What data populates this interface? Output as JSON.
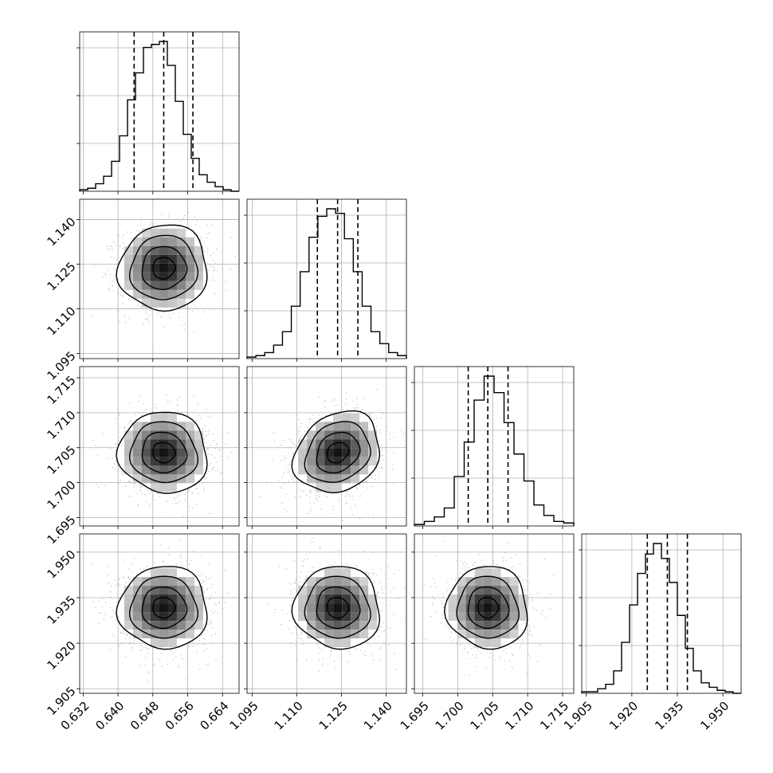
{
  "chart_data": {
    "type": "corner",
    "title": "",
    "style": {
      "grid": true,
      "line_color": "#000000",
      "scatter_color": "#8c8c8c",
      "fill_color": "#ffffff"
    },
    "variables": [
      {
        "index": 0,
        "ticks": [
          "0.632",
          "0.640",
          "0.648",
          "0.656",
          "0.664"
        ],
        "tick_values": [
          0.632,
          0.64,
          0.648,
          0.656,
          0.664
        ],
        "range": [
          0.6312,
          0.6678
        ],
        "quantiles": [
          0.6437,
          0.6505,
          0.6572
        ],
        "histogram": [
          0.01,
          0.02,
          0.05,
          0.1,
          0.2,
          0.37,
          0.61,
          0.79,
          0.96,
          0.98,
          1.0,
          0.84,
          0.6,
          0.38,
          0.22,
          0.11,
          0.06,
          0.03,
          0.01,
          0.0
        ]
      },
      {
        "index": 1,
        "ticks": [
          "1.095",
          "1.110",
          "1.125",
          "1.140"
        ],
        "tick_values": [
          1.095,
          1.11,
          1.125,
          1.14
        ],
        "range": [
          1.0933,
          1.1468
        ],
        "quantiles": [
          1.1169,
          1.1237,
          1.1305
        ],
        "histogram": [
          0.01,
          0.02,
          0.04,
          0.09,
          0.18,
          0.35,
          0.58,
          0.81,
          0.95,
          1.0,
          0.97,
          0.8,
          0.58,
          0.35,
          0.18,
          0.1,
          0.04,
          0.02
        ]
      },
      {
        "index": 2,
        "ticks": [
          "1.695",
          "1.700",
          "1.705",
          "1.710",
          "1.715"
        ],
        "tick_values": [
          1.695,
          1.7,
          1.705,
          1.71,
          1.715
        ],
        "range": [
          1.6938,
          1.7166
        ],
        "quantiles": [
          1.7015,
          1.7043,
          1.7072
        ],
        "histogram": [
          0.01,
          0.03,
          0.06,
          0.12,
          0.33,
          0.56,
          0.84,
          1.0,
          0.89,
          0.69,
          0.48,
          0.3,
          0.14,
          0.07,
          0.03,
          0.02
        ]
      },
      {
        "index": 3,
        "ticks": [
          "1.905",
          "1.920",
          "1.935",
          "1.950"
        ],
        "tick_values": [
          1.905,
          1.92,
          1.935,
          1.95
        ],
        "range": [
          1.9035,
          1.956
        ],
        "quantiles": [
          1.9251,
          1.9317,
          1.9383
        ],
        "histogram": [
          0.01,
          0.01,
          0.03,
          0.06,
          0.15,
          0.34,
          0.59,
          0.8,
          0.93,
          1.0,
          0.9,
          0.74,
          0.52,
          0.3,
          0.15,
          0.07,
          0.04,
          0.02,
          0.01,
          0.0
        ]
      }
    ],
    "pairs": [
      {
        "row": 1,
        "col": 0,
        "mean": [
          0.6505,
          1.1237
        ],
        "sd": [
          0.0051,
          0.0072
        ],
        "rho": 0.04
      },
      {
        "row": 2,
        "col": 0,
        "mean": [
          0.6505,
          1.7043
        ],
        "sd": [
          0.0051,
          0.0029
        ],
        "rho": -0.05
      },
      {
        "row": 2,
        "col": 1,
        "mean": [
          1.1237,
          1.7043
        ],
        "sd": [
          0.0072,
          0.0029
        ],
        "rho": 0.2
      },
      {
        "row": 3,
        "col": 0,
        "mean": [
          0.6505,
          1.9317
        ],
        "sd": [
          0.0051,
          0.0068
        ],
        "rho": 0.0
      },
      {
        "row": 3,
        "col": 1,
        "mean": [
          1.1237,
          1.9317
        ],
        "sd": [
          0.0072,
          0.0068
        ],
        "rho": -0.04
      },
      {
        "row": 3,
        "col": 2,
        "mean": [
          1.7043,
          1.9317
        ],
        "sd": [
          0.0029,
          0.0068
        ],
        "rho": -0.03
      }
    ]
  }
}
